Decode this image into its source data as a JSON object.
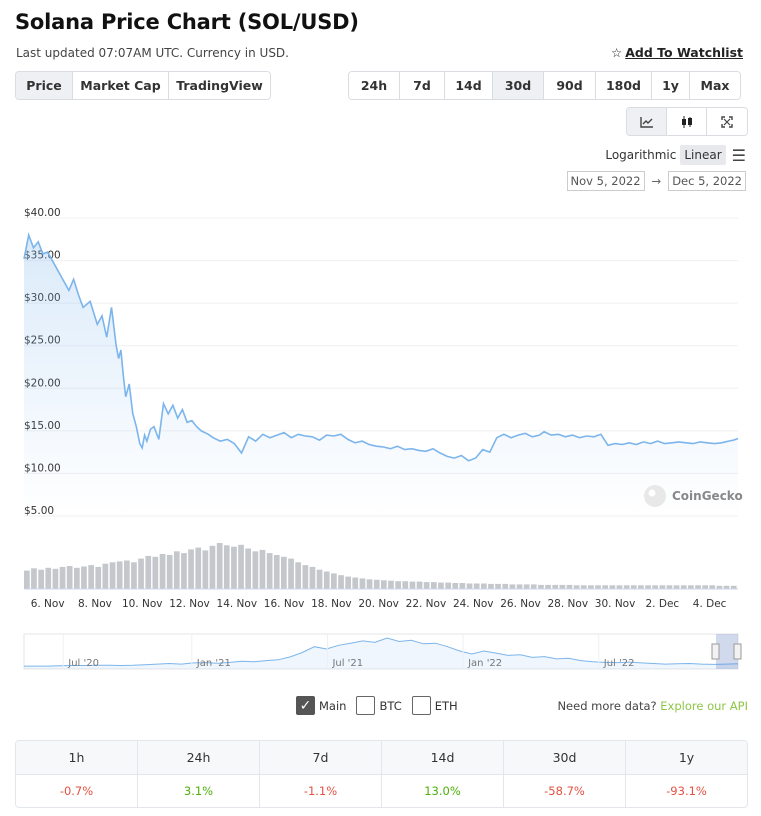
{
  "header": {
    "title": "Solana Price Chart (SOL/USD)",
    "subtitle": "Last updated 07:07AM UTC. Currency in USD.",
    "watchlist_label": "Add To Watchlist"
  },
  "view_tabs": [
    "Price",
    "Market Cap",
    "TradingView"
  ],
  "active_view": "Price",
  "range_tabs": [
    "24h",
    "7d",
    "14d",
    "30d",
    "90d",
    "180d",
    "1y",
    "Max"
  ],
  "active_range": "30d",
  "chart_type_tabs": [
    {
      "name": "line-chart-icon",
      "glyph": "⟋",
      "active": true
    },
    {
      "name": "candlestick-icon",
      "glyph": "▮▮",
      "active": false
    },
    {
      "name": "fullscreen-icon",
      "glyph": "⤧",
      "active": false
    }
  ],
  "scale": {
    "log_label": "Logarithmic",
    "linear_label": "Linear",
    "active": "Linear"
  },
  "date_range": {
    "from": "Nov 5, 2022",
    "arrow": "→",
    "to": "Dec 5, 2022"
  },
  "chart_data": {
    "type": "area",
    "y_tick_labels": [
      "$40.00",
      "$35.00",
      "$30.00",
      "$25.00",
      "$20.00",
      "$15.00",
      "$10.00",
      "$5.00"
    ],
    "y_ticks": [
      40,
      35,
      30,
      25,
      20,
      15,
      10,
      5
    ],
    "ylim": [
      5,
      40
    ],
    "x_tick_labels": [
      "6. Nov",
      "8. Nov",
      "10. Nov",
      "12. Nov",
      "14. Nov",
      "16. Nov",
      "18. Nov",
      "20. Nov",
      "22. Nov",
      "24. Nov",
      "26. Nov",
      "28. Nov",
      "30. Nov",
      "2. Dec",
      "4. Dec"
    ],
    "x_ticks": [
      1,
      3,
      5,
      7,
      9,
      11,
      13,
      15,
      17,
      19,
      21,
      23,
      25,
      27,
      29
    ],
    "xlim": [
      0,
      30.2
    ],
    "series": [
      {
        "x": [
          0,
          0.2,
          0.4,
          0.6,
          0.8,
          1.0,
          1.3,
          1.6,
          1.9,
          2.1,
          2.3,
          2.5,
          2.8,
          3.1,
          3.3,
          3.5,
          3.7,
          3.9,
          4.0,
          4.1,
          4.2,
          4.3,
          4.45,
          4.6,
          4.75,
          4.9,
          5.0,
          5.1,
          5.2,
          5.35,
          5.5,
          5.7,
          5.9,
          6.1,
          6.3,
          6.5,
          6.7,
          6.9,
          7.1,
          7.3,
          7.5,
          7.8,
          8.0,
          8.3,
          8.6,
          8.9,
          9.2,
          9.5,
          9.8,
          10.1,
          10.4,
          10.7,
          11.0,
          11.3,
          11.6,
          11.9,
          12.2,
          12.5,
          12.8,
          13.1,
          13.4,
          13.7,
          14.0,
          14.3,
          14.6,
          14.9,
          15.2,
          15.5,
          15.8,
          16.1,
          16.4,
          16.7,
          17.0,
          17.3,
          17.6,
          17.9,
          18.2,
          18.5,
          18.8,
          19.1,
          19.4,
          19.7,
          20.0,
          20.3,
          20.6,
          20.9,
          21.2,
          21.5,
          21.8,
          22.0,
          22.3,
          22.6,
          22.9,
          23.2,
          23.5,
          23.8,
          24.1,
          24.4,
          24.7,
          25.0,
          25.3,
          25.6,
          25.9,
          26.2,
          26.5,
          26.8,
          27.1,
          27.4,
          27.7,
          28.0,
          28.3,
          28.6,
          28.9,
          29.2,
          29.5,
          29.8,
          30.0,
          30.2
        ],
        "y": [
          35.2,
          38.0,
          36.5,
          37.2,
          35.8,
          36.0,
          34.5,
          33.0,
          31.5,
          32.8,
          31.0,
          29.5,
          30.2,
          27.5,
          28.5,
          26.0,
          29.5,
          25.0,
          23.5,
          24.5,
          21.5,
          19.0,
          20.5,
          17.0,
          15.5,
          13.5,
          13.0,
          14.5,
          13.8,
          15.2,
          15.5,
          14.0,
          18.2,
          17.0,
          18.0,
          16.5,
          17.5,
          16.0,
          16.2,
          15.5,
          15.0,
          14.6,
          14.2,
          13.8,
          14.0,
          13.5,
          12.4,
          14.3,
          13.8,
          14.6,
          14.2,
          14.5,
          14.8,
          14.2,
          14.6,
          14.4,
          14.3,
          13.9,
          14.5,
          14.4,
          14.6,
          14.0,
          13.6,
          13.8,
          13.4,
          13.2,
          13.1,
          12.9,
          13.2,
          12.8,
          12.9,
          12.7,
          12.6,
          12.9,
          12.4,
          12.0,
          11.8,
          12.1,
          11.5,
          11.8,
          12.8,
          12.5,
          14.2,
          14.6,
          14.2,
          14.5,
          14.7,
          14.3,
          14.5,
          14.9,
          14.5,
          14.6,
          14.3,
          14.5,
          14.2,
          14.4,
          14.3,
          14.6,
          13.3,
          13.5,
          13.4,
          13.6,
          13.4,
          13.7,
          13.5,
          13.8,
          13.5,
          13.6,
          13.7,
          13.6,
          13.5,
          13.7,
          13.6,
          13.5,
          13.6,
          13.8,
          13.9,
          14.1
        ]
      }
    ],
    "volume_bars": [
      0.4,
      0.45,
      0.42,
      0.46,
      0.44,
      0.48,
      0.5,
      0.46,
      0.49,
      0.52,
      0.48,
      0.55,
      0.58,
      0.6,
      0.62,
      0.58,
      0.66,
      0.72,
      0.7,
      0.76,
      0.74,
      0.82,
      0.78,
      0.86,
      0.9,
      0.84,
      0.94,
      1.0,
      0.95,
      0.92,
      0.96,
      0.88,
      0.82,
      0.85,
      0.78,
      0.74,
      0.7,
      0.66,
      0.58,
      0.52,
      0.48,
      0.42,
      0.38,
      0.34,
      0.3,
      0.27,
      0.25,
      0.23,
      0.21,
      0.2,
      0.19,
      0.18,
      0.17,
      0.17,
      0.16,
      0.16,
      0.15,
      0.15,
      0.14,
      0.14,
      0.13,
      0.13,
      0.12,
      0.12,
      0.12,
      0.11,
      0.11,
      0.11,
      0.1,
      0.1,
      0.1,
      0.1,
      0.09,
      0.09,
      0.09,
      0.09,
      0.09,
      0.08,
      0.08,
      0.08,
      0.08,
      0.08,
      0.08,
      0.08,
      0.08,
      0.08,
      0.08,
      0.08,
      0.08,
      0.08,
      0.08,
      0.08,
      0.08,
      0.08,
      0.08,
      0.08,
      0.08,
      0.07,
      0.07,
      0.07
    ],
    "watermark": "CoinGecko",
    "navigator": {
      "labels": [
        "Jul '20",
        "Jan '21",
        "Jul '21",
        "Jan '22",
        "Jul '22"
      ],
      "values": [
        0.03,
        0.03,
        0.03,
        0.04,
        0.05,
        0.05,
        0.06,
        0.06,
        0.05,
        0.06,
        0.08,
        0.1,
        0.12,
        0.1,
        0.14,
        0.15,
        0.13,
        0.16,
        0.2,
        0.18,
        0.22,
        0.25,
        0.35,
        0.5,
        0.7,
        0.62,
        0.75,
        0.82,
        0.9,
        0.85,
        1.0,
        0.88,
        0.92,
        0.8,
        0.82,
        0.7,
        0.55,
        0.45,
        0.55,
        0.48,
        0.4,
        0.42,
        0.33,
        0.36,
        0.28,
        0.3,
        0.22,
        0.18,
        0.16,
        0.15,
        0.17,
        0.14,
        0.12,
        0.1,
        0.11,
        0.12,
        0.1,
        0.09,
        0.1,
        0.11
      ]
    }
  },
  "compare": {
    "items": [
      {
        "label": "Main",
        "checked": true
      },
      {
        "label": "BTC",
        "checked": false
      },
      {
        "label": "ETH",
        "checked": false
      }
    ],
    "api_text": "Need more data?",
    "api_link": "Explore our API"
  },
  "performance": {
    "headers": [
      "1h",
      "24h",
      "7d",
      "14d",
      "30d",
      "1y"
    ],
    "values": [
      "-0.7%",
      "3.1%",
      "-1.1%",
      "13.0%",
      "-58.7%",
      "-93.1%"
    ],
    "signs": [
      "neg",
      "pos",
      "neg",
      "pos",
      "neg",
      "neg"
    ]
  },
  "colors": {
    "line": "#7cb5ec",
    "pos": "#4eaf0a",
    "neg": "#e15241",
    "link": "#8dc647"
  }
}
